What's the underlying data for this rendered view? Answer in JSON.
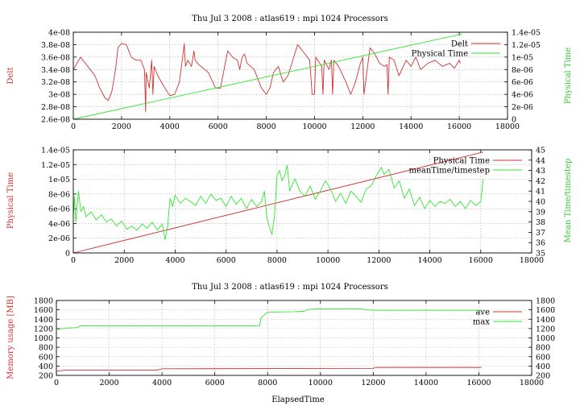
{
  "colors": {
    "red": "#d23232",
    "green": "#32e632",
    "grid": "#9a9a9a"
  },
  "chart_data": [
    {
      "type": "line",
      "title": "Thu Jul 3 2008 : atlas619 : mpi 1024 Processors",
      "xlabel": "",
      "ylabel_left": "Delt",
      "ylabel_right": "Physical Time",
      "xlim": [
        0,
        18000
      ],
      "ylim_left": [
        2.6e-08,
        4e-08
      ],
      "ylim_right": [
        0,
        1.4e-05
      ],
      "x_ticks": [
        "0",
        "2000",
        "4000",
        "6000",
        "8000",
        "10000",
        "12000",
        "14000",
        "16000",
        "18000"
      ],
      "y_ticks_left": [
        "2.6e-08",
        "2.8e-08",
        "3e-08",
        "3.2e-08",
        "3.4e-08",
        "3.6e-08",
        "3.8e-08",
        "4e-08"
      ],
      "y_ticks_right": [
        "0",
        "2e-06",
        "4e-06",
        "6e-06",
        "8e-06",
        "1e-05",
        "1.2e-05",
        "1.4e-05"
      ],
      "legend_position": "top-right",
      "series": [
        {
          "name": "Delt",
          "axis": "left",
          "color": "#d23232",
          "points": [
            [
              0,
              3.4e-08
            ],
            [
              150,
              3.5e-08
            ],
            [
              300,
              3.6e-08
            ],
            [
              500,
              3.5e-08
            ],
            [
              700,
              3.4e-08
            ],
            [
              900,
              3.3e-08
            ],
            [
              1100,
              3.1e-08
            ],
            [
              1300,
              2.95e-08
            ],
            [
              1450,
              2.9e-08
            ],
            [
              1600,
              3.05e-08
            ],
            [
              1750,
              3.4e-08
            ],
            [
              1850,
              3.75e-08
            ],
            [
              2000,
              3.82e-08
            ],
            [
              2200,
              3.8e-08
            ],
            [
              2400,
              3.6e-08
            ],
            [
              2600,
              3.55e-08
            ],
            [
              2800,
              3.55e-08
            ],
            [
              2950,
              3.4e-08
            ],
            [
              3000,
              2.72e-08
            ],
            [
              3020,
              3.35e-08
            ],
            [
              3150,
              3.1e-08
            ],
            [
              3250,
              3.55e-08
            ],
            [
              3300,
              3e-08
            ],
            [
              3350,
              3.45e-08
            ],
            [
              3500,
              3.3e-08
            ],
            [
              3800,
              3.1e-08
            ],
            [
              4000,
              2.98e-08
            ],
            [
              4200,
              3e-08
            ],
            [
              4400,
              3.2e-08
            ],
            [
              4550,
              3.65e-08
            ],
            [
              4600,
              3.82e-08
            ],
            [
              4650,
              3.45e-08
            ],
            [
              4750,
              3.55e-08
            ],
            [
              4900,
              3.45e-08
            ],
            [
              5000,
              3.7e-08
            ],
            [
              5050,
              3.55e-08
            ],
            [
              5200,
              3.48e-08
            ],
            [
              5600,
              3.35e-08
            ],
            [
              5900,
              3.1e-08
            ],
            [
              6100,
              3.1e-08
            ],
            [
              6400,
              3.7e-08
            ],
            [
              6600,
              3.6e-08
            ],
            [
              6800,
              3.55e-08
            ],
            [
              6900,
              3.4e-08
            ],
            [
              7000,
              3.6e-08
            ],
            [
              7100,
              3.65e-08
            ],
            [
              7200,
              3.5e-08
            ],
            [
              7500,
              3.4e-08
            ],
            [
              7800,
              3.1e-08
            ],
            [
              8000,
              3e-08
            ],
            [
              8150,
              3.1e-08
            ],
            [
              8300,
              3.35e-08
            ],
            [
              8500,
              3.45e-08
            ],
            [
              8700,
              3.2e-08
            ],
            [
              8900,
              3.3e-08
            ],
            [
              9100,
              3.55e-08
            ],
            [
              9300,
              3.8e-08
            ],
            [
              9500,
              3.7e-08
            ],
            [
              9800,
              3.55e-08
            ],
            [
              9900,
              3e-08
            ],
            [
              10000,
              3e-08
            ],
            [
              10050,
              3.6e-08
            ],
            [
              10300,
              3.45e-08
            ],
            [
              10350,
              3e-08
            ],
            [
              10400,
              3.55e-08
            ],
            [
              10600,
              3.4e-08
            ],
            [
              10700,
              3.55e-08
            ],
            [
              10750,
              3e-08
            ],
            [
              10800,
              3.55e-08
            ],
            [
              11000,
              3.45e-08
            ],
            [
              11300,
              3.2e-08
            ],
            [
              11500,
              3e-08
            ],
            [
              11700,
              3.2e-08
            ],
            [
              11900,
              3.5e-08
            ],
            [
              12000,
              3.6e-08
            ],
            [
              12050,
              3e-08
            ],
            [
              12300,
              3.75e-08
            ],
            [
              12500,
              3.65e-08
            ],
            [
              12700,
              3.5e-08
            ],
            [
              12900,
              3.45e-08
            ],
            [
              13000,
              3.48e-08
            ],
            [
              13050,
              3e-08
            ],
            [
              13100,
              3.6e-08
            ],
            [
              13300,
              3.55e-08
            ],
            [
              13500,
              3.3e-08
            ],
            [
              13800,
              3.55e-08
            ],
            [
              14000,
              3.45e-08
            ],
            [
              14200,
              3.6e-08
            ],
            [
              14400,
              3.4e-08
            ],
            [
              14700,
              3.5e-08
            ],
            [
              15000,
              3.55e-08
            ],
            [
              15300,
              3.45e-08
            ],
            [
              15600,
              3.5e-08
            ],
            [
              15800,
              3.42e-08
            ],
            [
              16000,
              3.55e-08
            ],
            [
              16050,
              3.5e-08
            ]
          ]
        },
        {
          "name": "Physical Time",
          "axis": "right",
          "color": "#32e632",
          "points": [
            [
              0,
              0
            ],
            [
              16100,
              1.37e-05
            ]
          ]
        }
      ]
    },
    {
      "type": "line",
      "title": "",
      "xlabel": "",
      "ylabel_left": "Physical Time",
      "ylabel_right": "Mean Time/timestep",
      "xlim": [
        0,
        18000
      ],
      "ylim_left": [
        0,
        1.4e-05
      ],
      "ylim_right": [
        35,
        45
      ],
      "x_ticks": [
        "0",
        "2000",
        "4000",
        "6000",
        "8000",
        "10000",
        "12000",
        "14000",
        "16000",
        "18000"
      ],
      "y_ticks_left": [
        "0",
        "2e-06",
        "4e-06",
        "6e-06",
        "8e-06",
        "1e-05",
        "1.2e-05",
        "1.4e-05"
      ],
      "y_ticks_right": [
        "35",
        "36",
        "37",
        "38",
        "39",
        "40",
        "41",
        "42",
        "43",
        "44",
        "45"
      ],
      "legend_position": "top-right",
      "series": [
        {
          "name": "Physical Time",
          "axis": "left",
          "color": "#d23232",
          "points": [
            [
              0,
              0
            ],
            [
              16100,
              1.37e-05
            ]
          ]
        },
        {
          "name": "meanTime/timestep",
          "axis": "right",
          "color": "#32e632",
          "points": [
            [
              0,
              38.5
            ],
            [
              50,
              40.5
            ],
            [
              100,
              38.0
            ],
            [
              200,
              41.0
            ],
            [
              300,
              39.0
            ],
            [
              400,
              39.5
            ],
            [
              500,
              38.5
            ],
            [
              700,
              39.0
            ],
            [
              900,
              38.2
            ],
            [
              1100,
              38.7
            ],
            [
              1300,
              38.0
            ],
            [
              1500,
              38.3
            ],
            [
              1700,
              37.6
            ],
            [
              1900,
              38.1
            ],
            [
              2100,
              37.3
            ],
            [
              2300,
              37.6
            ],
            [
              2500,
              37.2
            ],
            [
              2700,
              37.8
            ],
            [
              2900,
              37.4
            ],
            [
              3100,
              38.0
            ],
            [
              3300,
              37.2
            ],
            [
              3500,
              37.8
            ],
            [
              3600,
              36.3
            ],
            [
              3700,
              37.5
            ],
            [
              3800,
              40.3
            ],
            [
              3900,
              39.5
            ],
            [
              4000,
              40.6
            ],
            [
              4200,
              39.8
            ],
            [
              4400,
              40.3
            ],
            [
              4600,
              40.0
            ],
            [
              4800,
              39.6
            ],
            [
              5000,
              40.5
            ],
            [
              5200,
              39.8
            ],
            [
              5400,
              40.7
            ],
            [
              5600,
              40.1
            ],
            [
              5800,
              40.3
            ],
            [
              6000,
              39.5
            ],
            [
              6200,
              40.5
            ],
            [
              6400,
              39.7
            ],
            [
              6600,
              40.3
            ],
            [
              6800,
              39.3
            ],
            [
              7000,
              40.2
            ],
            [
              7200,
              39.5
            ],
            [
              7400,
              40.0
            ],
            [
              7500,
              41.0
            ],
            [
              7600,
              38.5
            ],
            [
              7700,
              37.5
            ],
            [
              7800,
              36.8
            ],
            [
              7900,
              38.5
            ],
            [
              8000,
              42.5
            ],
            [
              8100,
              43.0
            ],
            [
              8200,
              42.0
            ],
            [
              8300,
              42.5
            ],
            [
              8400,
              43.5
            ],
            [
              8500,
              41.0
            ],
            [
              8700,
              42.2
            ],
            [
              8900,
              41.0
            ],
            [
              9100,
              40.5
            ],
            [
              9300,
              41.5
            ],
            [
              9500,
              40.2
            ],
            [
              9700,
              41.0
            ],
            [
              9900,
              42.0
            ],
            [
              10100,
              41.2
            ],
            [
              10300,
              40.0
            ],
            [
              10500,
              40.8
            ],
            [
              10700,
              39.8
            ],
            [
              10900,
              41.0
            ],
            [
              11100,
              40.5
            ],
            [
              11300,
              39.9
            ],
            [
              11500,
              41.2
            ],
            [
              11700,
              41.5
            ],
            [
              11900,
              42.5
            ],
            [
              12100,
              43.3
            ],
            [
              12200,
              42.6
            ],
            [
              12400,
              43.1
            ],
            [
              12600,
              41.3
            ],
            [
              12800,
              42.0
            ],
            [
              13000,
              40.3
            ],
            [
              13200,
              41.2
            ],
            [
              13400,
              39.6
            ],
            [
              13600,
              40.4
            ],
            [
              13800,
              39.3
            ],
            [
              14000,
              40.1
            ],
            [
              14200,
              39.5
            ],
            [
              14400,
              40.0
            ],
            [
              14600,
              39.8
            ],
            [
              14800,
              40.2
            ],
            [
              15000,
              39.5
            ],
            [
              15200,
              40.0
            ],
            [
              15400,
              39.3
            ],
            [
              15600,
              40.1
            ],
            [
              15800,
              39.6
            ],
            [
              16000,
              40.0
            ],
            [
              16100,
              42.2
            ]
          ]
        }
      ]
    },
    {
      "type": "line",
      "title": "Thu Jul 3 2008 : atlas619 : mpi 1024 Processors",
      "xlabel": "ElapsedTime",
      "ylabel_left": "Memory usage [MB]",
      "ylabel_right": "",
      "xlim": [
        0,
        18000
      ],
      "ylim_left": [
        200,
        1800
      ],
      "ylim_right": [
        200,
        1800
      ],
      "x_ticks": [
        "0",
        "2000",
        "4000",
        "6000",
        "8000",
        "10000",
        "12000",
        "14000",
        "16000",
        "18000"
      ],
      "y_ticks_left": [
        "200",
        "400",
        "600",
        "800",
        "1000",
        "1200",
        "1400",
        "1600",
        "1800"
      ],
      "y_ticks_right": [
        "200",
        "400",
        "600",
        "800",
        "1000",
        "1200",
        "1400",
        "1600",
        "1800"
      ],
      "legend_position": "top-right",
      "series": [
        {
          "name": "ave",
          "axis": "left",
          "color": "#d23232",
          "points": [
            [
              0,
              290
            ],
            [
              300,
              310
            ],
            [
              3800,
              310
            ],
            [
              4000,
              340
            ],
            [
              12000,
              350
            ],
            [
              12100,
              370
            ],
            [
              16100,
              370
            ]
          ]
        },
        {
          "name": "max",
          "axis": "left",
          "color": "#32e632",
          "points": [
            [
              0,
              1200
            ],
            [
              100,
              1180
            ],
            [
              300,
              1210
            ],
            [
              800,
              1220
            ],
            [
              900,
              1260
            ],
            [
              7700,
              1260
            ],
            [
              7750,
              1430
            ],
            [
              7850,
              1480
            ],
            [
              8000,
              1550
            ],
            [
              9000,
              1560
            ],
            [
              9400,
              1570
            ],
            [
              9500,
              1610
            ],
            [
              10000,
              1620
            ],
            [
              11500,
              1620
            ],
            [
              12000,
              1590
            ],
            [
              16100,
              1590
            ]
          ]
        }
      ]
    }
  ]
}
